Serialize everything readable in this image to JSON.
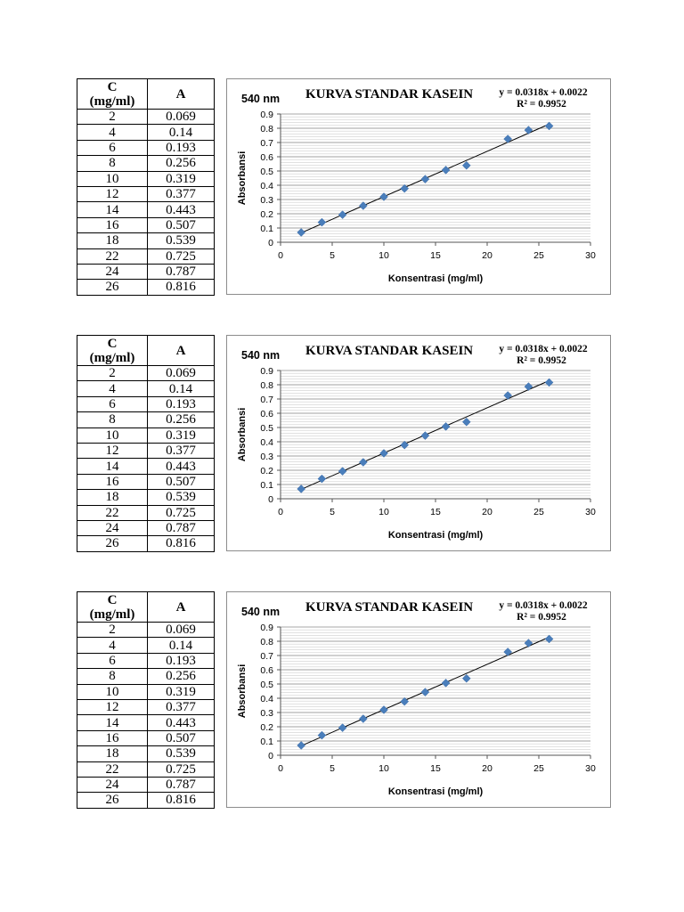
{
  "table": {
    "header_c": "C",
    "header_c_unit": "(mg/ml)",
    "header_a": "A",
    "rows": [
      {
        "c": "2",
        "a": "0.069"
      },
      {
        "c": "4",
        "a": "0.14"
      },
      {
        "c": "6",
        "a": "0.193"
      },
      {
        "c": "8",
        "a": "0.256"
      },
      {
        "c": "10",
        "a": "0.319"
      },
      {
        "c": "12",
        "a": "0.377"
      },
      {
        "c": "14",
        "a": "0.443"
      },
      {
        "c": "16",
        "a": "0.507"
      },
      {
        "c": "18",
        "a": "0.539"
      },
      {
        "c": "22",
        "a": "0.725"
      },
      {
        "c": "24",
        "a": "0.787"
      },
      {
        "c": "26",
        "a": "0.816"
      }
    ]
  },
  "chart_data": {
    "type": "scatter",
    "wavelength_label": "540 nm",
    "title": "KURVA STANDAR KASEIN",
    "equation": "y = 0.0318x + 0.0022",
    "r_squared": "R² = 0.9952",
    "xlabel": "Konsentrasi (mg/ml)",
    "ylabel": "Absorbansi",
    "xlim": [
      0,
      30
    ],
    "ylim": [
      0,
      0.9
    ],
    "x_ticks": [
      0,
      5,
      10,
      15,
      20,
      25,
      30
    ],
    "y_ticks": [
      0,
      0.1,
      0.2,
      0.3,
      0.4,
      0.5,
      0.6,
      0.7,
      0.8,
      0.9
    ],
    "x": [
      2,
      4,
      6,
      8,
      10,
      12,
      14,
      16,
      18,
      22,
      24,
      26
    ],
    "y": [
      0.069,
      0.14,
      0.193,
      0.256,
      0.319,
      0.377,
      0.443,
      0.507,
      0.539,
      0.725,
      0.787,
      0.816
    ],
    "trendline": {
      "slope": 0.0318,
      "intercept": 0.0022
    },
    "marker_color": "#4a7ebb",
    "grid": true
  },
  "blocks": [
    "block-1",
    "block-2",
    "block-3"
  ]
}
